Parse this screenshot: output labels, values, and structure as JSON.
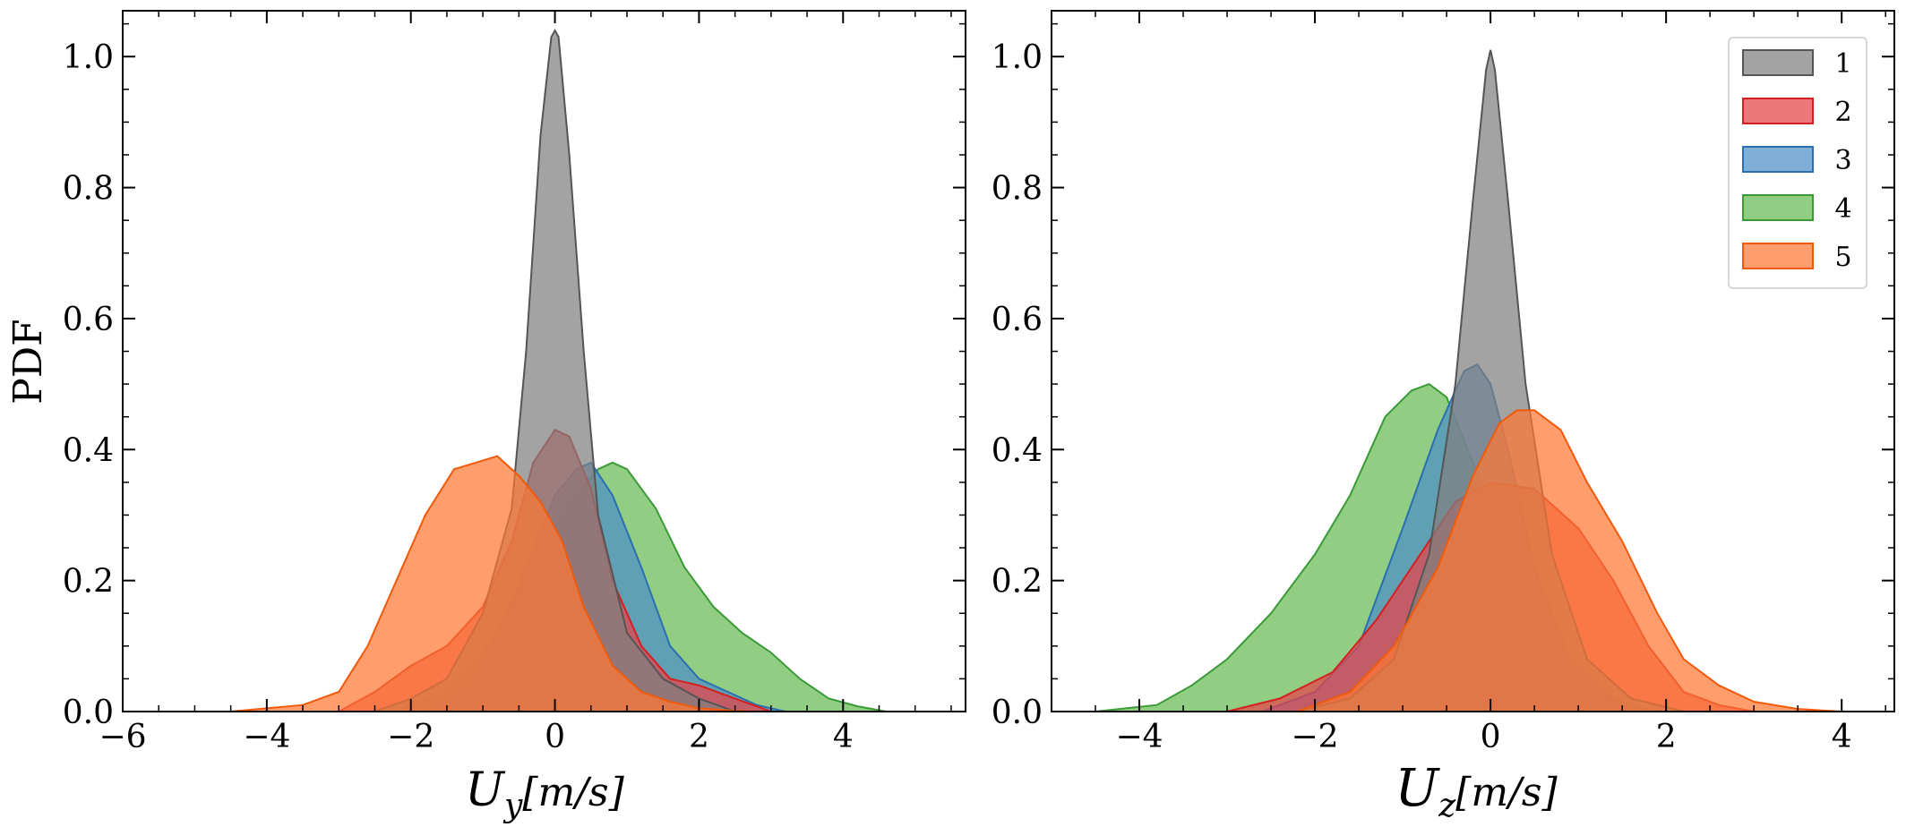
{
  "figure": {
    "series_colors": {
      "1": {
        "fill": "#7f7f7f",
        "stroke": "#555555"
      },
      "2": {
        "fill": "#e8434a",
        "stroke": "#d42020"
      },
      "3": {
        "fill": "#4d8fc8",
        "stroke": "#2a6fb0"
      },
      "4": {
        "fill": "#66bb55",
        "stroke": "#3a9a35"
      },
      "5": {
        "fill": "#ff7733",
        "stroke": "#f05a0a"
      }
    },
    "fill_opacity": 0.72
  },
  "chart_data": [
    {
      "type": "area",
      "ylabel": "PDF",
      "xlabel": "U_y[m/s]",
      "xlabel_main": "U",
      "xlabel_sub": "y",
      "xlabel_unit": "[m/s]",
      "xlim": [
        -6.0,
        5.7
      ],
      "ylim": [
        0.0,
        1.07
      ],
      "xticks": [
        -6,
        -4,
        -2,
        0,
        2,
        4
      ],
      "xtick_labels": [
        "−6",
        "−4",
        "−2",
        "0",
        "2",
        "4"
      ],
      "yticks": [
        0.0,
        0.2,
        0.4,
        0.6,
        0.8,
        1.0
      ],
      "ytick_labels": [
        "0.0",
        "0.2",
        "0.4",
        "0.6",
        "0.8",
        "1.0"
      ],
      "grid": false,
      "series": [
        {
          "id": "4",
          "x": [
            -2.2,
            -1.5,
            -1.0,
            -0.5,
            0.0,
            0.3,
            0.6,
            0.8,
            1.0,
            1.4,
            1.8,
            2.2,
            2.6,
            3.0,
            3.4,
            3.8,
            4.2,
            4.6
          ],
          "y": [
            0.0,
            0.03,
            0.09,
            0.18,
            0.28,
            0.33,
            0.37,
            0.38,
            0.37,
            0.31,
            0.22,
            0.16,
            0.12,
            0.09,
            0.05,
            0.02,
            0.008,
            0.0
          ]
        },
        {
          "id": "3",
          "x": [
            -1.8,
            -1.2,
            -0.8,
            -0.4,
            0.0,
            0.3,
            0.5,
            0.8,
            1.2,
            1.6,
            2.0,
            2.4,
            2.8,
            3.2
          ],
          "y": [
            0.0,
            0.04,
            0.12,
            0.22,
            0.33,
            0.37,
            0.38,
            0.33,
            0.22,
            0.1,
            0.05,
            0.03,
            0.01,
            0.0
          ]
        },
        {
          "id": "2",
          "x": [
            -3.0,
            -2.5,
            -2.0,
            -1.5,
            -1.0,
            -0.6,
            -0.3,
            0.0,
            0.2,
            0.5,
            0.8,
            1.2,
            1.6,
            2.0,
            2.5,
            3.0
          ],
          "y": [
            0.0,
            0.03,
            0.07,
            0.1,
            0.16,
            0.26,
            0.38,
            0.43,
            0.42,
            0.34,
            0.2,
            0.1,
            0.05,
            0.04,
            0.02,
            0.0
          ]
        },
        {
          "id": "1",
          "x": [
            -2.5,
            -2.0,
            -1.5,
            -1.0,
            -0.6,
            -0.4,
            -0.2,
            -0.05,
            0.0,
            0.05,
            0.2,
            0.4,
            0.6,
            1.0,
            1.5,
            2.0,
            2.5
          ],
          "y": [
            0.0,
            0.02,
            0.05,
            0.15,
            0.31,
            0.55,
            0.88,
            1.03,
            1.04,
            1.03,
            0.85,
            0.55,
            0.3,
            0.12,
            0.05,
            0.02,
            0.0
          ]
        },
        {
          "id": "5",
          "x": [
            -4.5,
            -3.5,
            -3.0,
            -2.6,
            -2.2,
            -1.8,
            -1.4,
            -1.1,
            -0.8,
            -0.5,
            -0.2,
            0.1,
            0.4,
            0.8,
            1.2,
            1.6,
            2.0,
            2.5,
            3.0
          ],
          "y": [
            0.0,
            0.01,
            0.03,
            0.1,
            0.2,
            0.3,
            0.37,
            0.38,
            0.39,
            0.36,
            0.32,
            0.26,
            0.16,
            0.07,
            0.03,
            0.015,
            0.005,
            0.001,
            0.0
          ]
        }
      ]
    },
    {
      "type": "area",
      "ylabel": "",
      "xlabel": "U_z[m/s]",
      "xlabel_main": "U",
      "xlabel_sub": "z",
      "xlabel_unit": "[m/s]",
      "xlim": [
        -5.0,
        4.6
      ],
      "ylim": [
        0.0,
        1.07
      ],
      "xticks": [
        -4,
        -2,
        0,
        2,
        4
      ],
      "xtick_labels": [
        "−4",
        "−2",
        "0",
        "2",
        "4"
      ],
      "yticks": [
        0.0,
        0.2,
        0.4,
        0.6,
        0.8,
        1.0
      ],
      "ytick_labels": [
        "0.0",
        "0.2",
        "0.4",
        "0.6",
        "0.8",
        "1.0"
      ],
      "grid": false,
      "legend": {
        "placement": "top-right",
        "entries": [
          {
            "id": "1",
            "label": "1"
          },
          {
            "id": "2",
            "label": "2"
          },
          {
            "id": "3",
            "label": "3"
          },
          {
            "id": "4",
            "label": "4"
          },
          {
            "id": "5",
            "label": "5"
          }
        ]
      },
      "series": [
        {
          "id": "4",
          "x": [
            -4.5,
            -3.8,
            -3.4,
            -3.0,
            -2.5,
            -2.0,
            -1.6,
            -1.2,
            -0.9,
            -0.7,
            -0.5,
            -0.2,
            0.1,
            0.5,
            0.9,
            1.3,
            1.7,
            2.0
          ],
          "y": [
            0.0,
            0.01,
            0.04,
            0.08,
            0.15,
            0.24,
            0.33,
            0.45,
            0.49,
            0.5,
            0.48,
            0.38,
            0.26,
            0.12,
            0.05,
            0.02,
            0.005,
            0.0
          ]
        },
        {
          "id": "3",
          "x": [
            -2.6,
            -2.0,
            -1.5,
            -1.0,
            -0.6,
            -0.3,
            -0.15,
            0.0,
            0.2,
            0.5,
            0.9,
            1.4,
            1.8
          ],
          "y": [
            0.0,
            0.03,
            0.1,
            0.28,
            0.43,
            0.52,
            0.53,
            0.5,
            0.4,
            0.22,
            0.08,
            0.02,
            0.0
          ]
        },
        {
          "id": "2",
          "x": [
            -3.0,
            -2.4,
            -1.8,
            -1.3,
            -0.8,
            -0.4,
            0.0,
            0.5,
            1.0,
            1.4,
            1.8,
            2.2,
            2.6,
            3.0
          ],
          "y": [
            0.0,
            0.02,
            0.06,
            0.14,
            0.24,
            0.32,
            0.35,
            0.34,
            0.28,
            0.2,
            0.1,
            0.03,
            0.01,
            0.0
          ]
        },
        {
          "id": "1",
          "x": [
            -2.2,
            -1.6,
            -1.1,
            -0.7,
            -0.4,
            -0.2,
            -0.05,
            0.0,
            0.05,
            0.2,
            0.4,
            0.7,
            1.1,
            1.6,
            2.2
          ],
          "y": [
            0.0,
            0.02,
            0.08,
            0.24,
            0.5,
            0.78,
            0.98,
            1.01,
            0.98,
            0.78,
            0.5,
            0.24,
            0.08,
            0.02,
            0.0
          ]
        },
        {
          "id": "5",
          "x": [
            -2.2,
            -1.6,
            -1.1,
            -0.6,
            -0.2,
            0.1,
            0.3,
            0.5,
            0.8,
            1.1,
            1.5,
            1.9,
            2.2,
            2.6,
            3.0,
            3.5,
            4.0
          ],
          "y": [
            0.0,
            0.03,
            0.1,
            0.22,
            0.36,
            0.44,
            0.46,
            0.46,
            0.43,
            0.35,
            0.26,
            0.15,
            0.08,
            0.04,
            0.015,
            0.004,
            0.0
          ]
        }
      ]
    }
  ]
}
